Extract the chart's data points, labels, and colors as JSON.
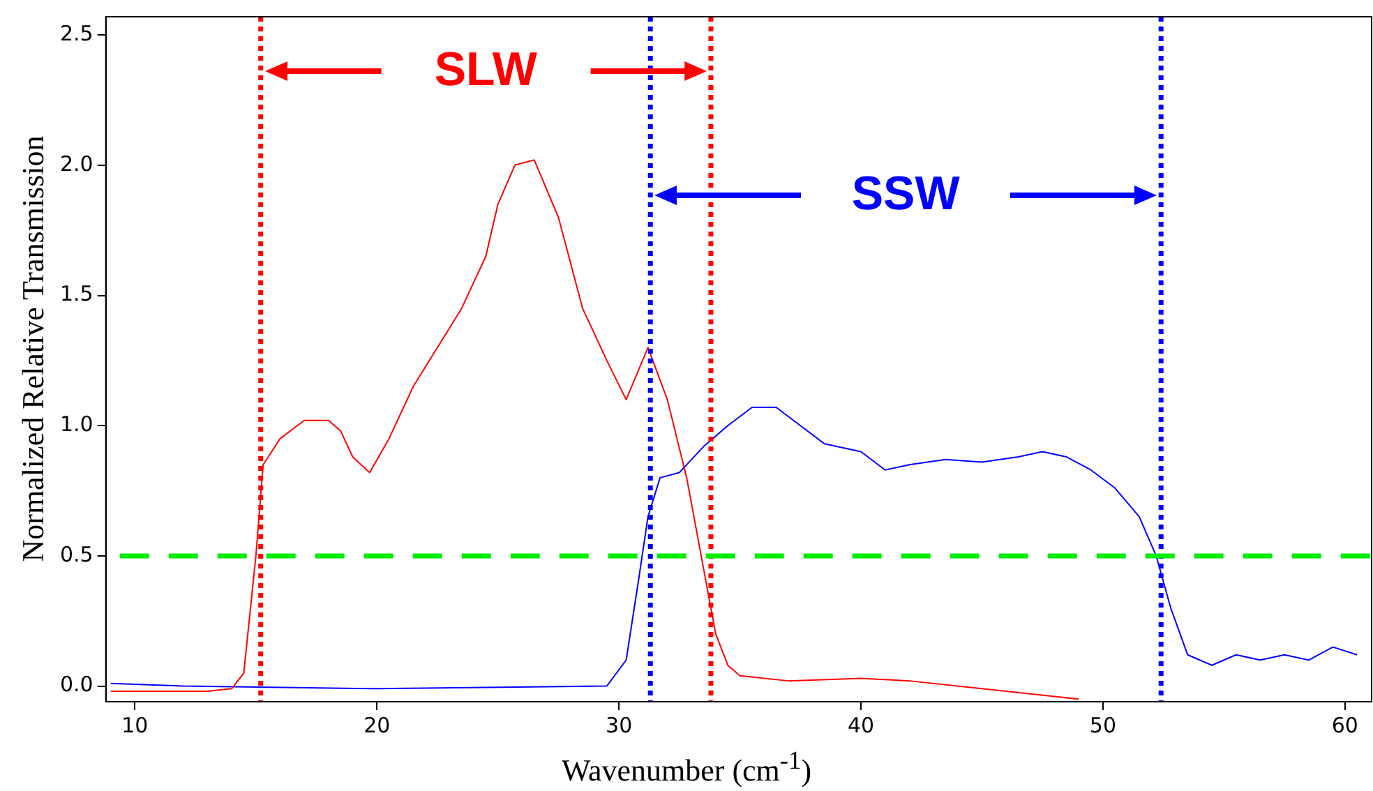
{
  "chart_data": {
    "type": "line",
    "xlabel": "Wavenumber (cm$^{-1}$)",
    "ylabel": "Normalized Relative Transmission",
    "xlim": [
      8.8,
      61.1
    ],
    "ylim": [
      -0.06,
      2.57
    ],
    "xticks": [
      10,
      20,
      30,
      40,
      50,
      60
    ],
    "yticks": [
      {
        "value": 0,
        "label": "0.0"
      },
      {
        "value": 0.5,
        "label": "0.5"
      },
      {
        "value": 1,
        "label": "1.0"
      },
      {
        "value": 1.5,
        "label": "1.5"
      },
      {
        "value": 2,
        "label": "2.0"
      },
      {
        "value": 2.5,
        "label": "2.5"
      }
    ],
    "grid": false,
    "legend": false,
    "marker": "none",
    "line_style": "solid",
    "series": [
      {
        "color": "#ff0000",
        "x": [
          9,
          11,
          13,
          14,
          14.5,
          15,
          15.3,
          16,
          17,
          18,
          18.5,
          19,
          19.7,
          20.5,
          21.5,
          22.5,
          23.5,
          24.5,
          25,
          25.7,
          26.5,
          27.5,
          28.5,
          29.5,
          30.3,
          31.2,
          32,
          32.8,
          33.5,
          34,
          34.5,
          35,
          37,
          40,
          42,
          45,
          48,
          49
        ],
        "values": [
          -0.02,
          -0.02,
          -0.02,
          -0.01,
          0.05,
          0.5,
          0.85,
          0.95,
          1.02,
          1.02,
          0.98,
          0.88,
          0.82,
          0.95,
          1.15,
          1.3,
          1.45,
          1.65,
          1.85,
          2.0,
          2.02,
          1.8,
          1.45,
          1.25,
          1.1,
          1.3,
          1.1,
          0.8,
          0.45,
          0.2,
          0.08,
          0.04,
          0.02,
          0.03,
          0.02,
          -0.01,
          -0.04,
          -0.05
        ]
      },
      {
        "color": "#0000ff",
        "x": [
          9,
          12,
          20,
          29.5,
          30.3,
          30.8,
          31.2,
          31.7,
          32.5,
          33.5,
          34.5,
          35.5,
          36.5,
          37.5,
          38.5,
          40,
          41,
          42,
          43.5,
          45,
          46.5,
          47.5,
          48.5,
          49.5,
          50.5,
          51.5,
          52.2,
          52.8,
          53.5,
          54.5,
          55.5,
          56.5,
          57.5,
          58.5,
          59.5,
          60.5
        ],
        "values": [
          0.01,
          0,
          -0.01,
          0,
          0.1,
          0.4,
          0.65,
          0.8,
          0.82,
          0.92,
          1.0,
          1.07,
          1.07,
          1.0,
          0.93,
          0.9,
          0.83,
          0.85,
          0.87,
          0.86,
          0.88,
          0.9,
          0.88,
          0.83,
          0.76,
          0.65,
          0.5,
          0.3,
          0.12,
          0.08,
          0.12,
          0.1,
          0.12,
          0.1,
          0.15,
          0.12
        ]
      }
    ],
    "ref_lines": [
      {
        "axis": "x",
        "value": 15.2,
        "color": "#ff0000",
        "line_style": "dotted"
      },
      {
        "axis": "x",
        "value": 33.8,
        "color": "#ff0000",
        "line_style": "dotted"
      },
      {
        "axis": "x",
        "value": 31.3,
        "color": "#0000ff",
        "line_style": "dotted"
      },
      {
        "axis": "x",
        "value": 52.4,
        "color": "#0000ff",
        "line_style": "dotted"
      },
      {
        "axis": "y",
        "value": 0.5,
        "color": "#00ee00",
        "line_style": "dashed"
      }
    ],
    "annotations": [
      "SLW",
      "SSW"
    ]
  }
}
